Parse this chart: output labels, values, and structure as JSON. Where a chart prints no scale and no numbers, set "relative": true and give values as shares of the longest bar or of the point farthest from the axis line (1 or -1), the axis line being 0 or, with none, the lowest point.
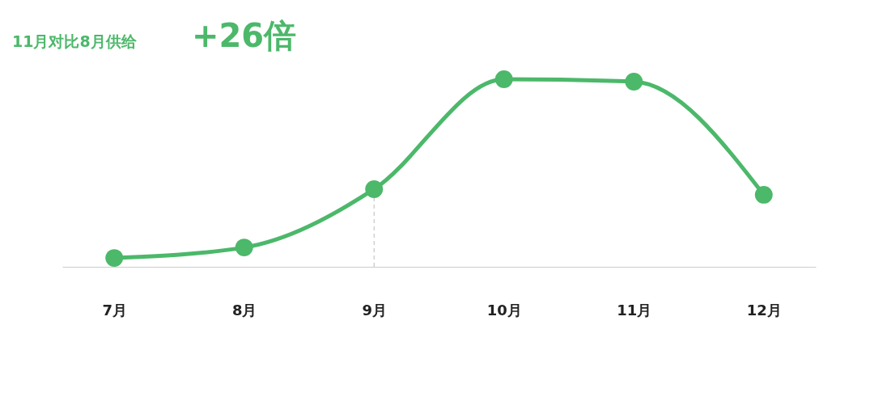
{
  "chart_data": {
    "type": "line",
    "title": "11月对比8月供给",
    "subtitle": "+26倍",
    "relative": true,
    "categories": [
      "7月",
      "8月",
      "9月",
      "10月",
      "11月",
      "12月"
    ],
    "series": [
      {
        "color": "#4cb86a",
        "values": [
          0.047,
          0.103,
          0.414,
          1,
          0.987,
          0.384
        ]
      }
    ],
    "ref_lines": [
      {
        "axis": "x",
        "value": "9月",
        "color": "#bbbbbb",
        "line_style": "dashed"
      }
    ],
    "marker": "circle",
    "line_style": "solid",
    "grid": false
  }
}
